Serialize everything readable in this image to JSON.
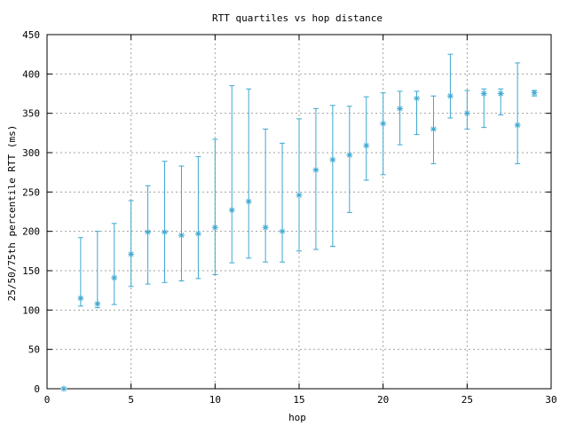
{
  "chart_data": {
    "type": "scatter",
    "title": "RTT quartiles vs hop distance",
    "xlabel": "hop",
    "ylabel": "25/50/75th percentile RTT (ms)",
    "xlim": [
      0,
      30
    ],
    "ylim": [
      0,
      450
    ],
    "xticks": [
      0,
      5,
      10,
      15,
      20,
      25,
      30
    ],
    "yticks": [
      0,
      50,
      100,
      150,
      200,
      250,
      300,
      350,
      400,
      450
    ],
    "grid": true,
    "legend": "none",
    "color": "#3ea7d0",
    "series": [
      {
        "marker": "asterisk",
        "error_bars": "25th to 75th percentile",
        "points": [
          {
            "x": 1,
            "p25": 0,
            "median": 0,
            "p75": 0
          },
          {
            "x": 2,
            "p25": 105,
            "median": 115,
            "p75": 192
          },
          {
            "x": 3,
            "p25": 103,
            "median": 108,
            "p75": 200
          },
          {
            "x": 4,
            "p25": 107,
            "median": 141,
            "p75": 210
          },
          {
            "x": 5,
            "p25": 130,
            "median": 171,
            "p75": 239
          },
          {
            "x": 6,
            "p25": 133,
            "median": 199,
            "p75": 258
          },
          {
            "x": 7,
            "p25": 135,
            "median": 199,
            "p75": 289
          },
          {
            "x": 8,
            "p25": 137,
            "median": 195,
            "p75": 283
          },
          {
            "x": 9,
            "p25": 140,
            "median": 197,
            "p75": 295
          },
          {
            "x": 10,
            "p25": 145,
            "median": 205,
            "p75": 317
          },
          {
            "x": 11,
            "p25": 160,
            "median": 227,
            "p75": 385
          },
          {
            "x": 12,
            "p25": 166,
            "median": 238,
            "p75": 381
          },
          {
            "x": 13,
            "p25": 161,
            "median": 205,
            "p75": 330
          },
          {
            "x": 14,
            "p25": 161,
            "median": 200,
            "p75": 312
          },
          {
            "x": 15,
            "p25": 175,
            "median": 246,
            "p75": 343
          },
          {
            "x": 16,
            "p25": 177,
            "median": 278,
            "p75": 356
          },
          {
            "x": 17,
            "p25": 181,
            "median": 291,
            "p75": 360
          },
          {
            "x": 18,
            "p25": 224,
            "median": 297,
            "p75": 359
          },
          {
            "x": 19,
            "p25": 265,
            "median": 309,
            "p75": 371
          },
          {
            "x": 20,
            "p25": 272,
            "median": 337,
            "p75": 376
          },
          {
            "x": 21,
            "p25": 310,
            "median": 356,
            "p75": 378
          },
          {
            "x": 22,
            "p25": 323,
            "median": 369,
            "p75": 378
          },
          {
            "x": 23,
            "p25": 286,
            "median": 330,
            "p75": 372
          },
          {
            "x": 24,
            "p25": 344,
            "median": 372,
            "p75": 425
          },
          {
            "x": 25,
            "p25": 330,
            "median": 350,
            "p75": 379
          },
          {
            "x": 26,
            "p25": 332,
            "median": 375,
            "p75": 381
          },
          {
            "x": 27,
            "p25": 348,
            "median": 375,
            "p75": 381
          },
          {
            "x": 28,
            "p25": 286,
            "median": 335,
            "p75": 414
          },
          {
            "x": 29,
            "p25": 372,
            "median": 376,
            "p75": 379
          }
        ]
      }
    ]
  }
}
